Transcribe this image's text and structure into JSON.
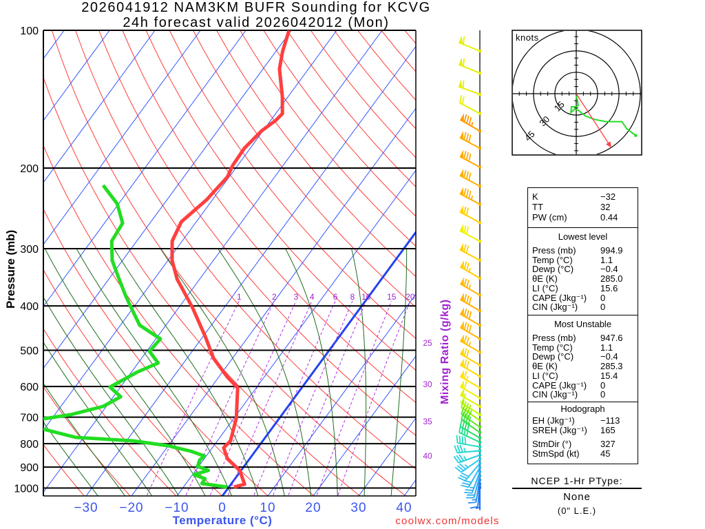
{
  "title": {
    "line1": "2026041912 NAM3KM BUFR Sounding for KCVG",
    "line2": "24h forecast valid 2026042012 (Mon)"
  },
  "credit": "coolwx.com/models",
  "chart_data": {
    "type": "skew-t",
    "xlabel": "Temperature (°C)",
    "ylabel": "Pressure (mb)",
    "ylim": [
      1041,
      100
    ],
    "xlim_at_bottom": [
      -40,
      43
    ],
    "pressure_ticks": [
      {
        "p": 100,
        "label": "100"
      },
      {
        "p": 200,
        "label": "200"
      },
      {
        "p": 300,
        "label": "300"
      },
      {
        "p": 400,
        "label": "400"
      },
      {
        "p": 500,
        "label": "500"
      },
      {
        "p": 600,
        "label": "600"
      },
      {
        "p": 700,
        "label": "700"
      },
      {
        "p": 800,
        "label": "800"
      },
      {
        "p": 900,
        "label": "900"
      },
      {
        "p": 1000,
        "label": "1000"
      }
    ],
    "temperature_ticks": [
      {
        "t": -30,
        "label": "−30"
      },
      {
        "t": -20,
        "label": "−20"
      },
      {
        "t": -10,
        "label": "−10"
      },
      {
        "t": 0,
        "label": "0"
      },
      {
        "t": 10,
        "label": "10"
      },
      {
        "t": 20,
        "label": "20"
      },
      {
        "t": 30,
        "label": "30"
      },
      {
        "t": 40,
        "label": "40"
      }
    ],
    "right_isotherm_labels": [
      "25",
      "30",
      "35",
      "40"
    ],
    "mixing_ratio_title": "Mixing Ratio (g/kg)",
    "mixing_ratio_lines": [
      {
        "w": 1,
        "label": "1"
      },
      {
        "w": 2,
        "label": "2"
      },
      {
        "w": 3,
        "label": "3"
      },
      {
        "w": 4,
        "label": "4"
      },
      {
        "w": 6,
        "label": "6"
      },
      {
        "w": 8,
        "label": "8"
      },
      {
        "w": 10,
        "label": "10"
      },
      {
        "w": 15,
        "label": "15"
      },
      {
        "w": 20,
        "label": "20"
      }
    ],
    "series": [
      {
        "name": "Temperature",
        "color": "#ff3f3f",
        "points": [
          [
            100,
            -60.5
          ],
          [
            111.3,
            -58.5
          ],
          [
            121.4,
            -56.4
          ],
          [
            139.5,
            -51.3
          ],
          [
            152.1,
            -48.5
          ],
          [
            157.4,
            -48.9
          ],
          [
            165.8,
            -50.3
          ],
          [
            180.9,
            -51.3
          ],
          [
            197.2,
            -51.1
          ],
          [
            209.2,
            -50.4
          ],
          [
            234.5,
            -51.3
          ],
          [
            262.0,
            -53.3
          ],
          [
            288.7,
            -52.2
          ],
          [
            318.1,
            -49.1
          ],
          [
            349.4,
            -45.0
          ],
          [
            404.1,
            -36.9
          ],
          [
            465.7,
            -29.6
          ],
          [
            520.4,
            -24.2
          ],
          [
            571.4,
            -18.2
          ],
          [
            604.0,
            -14.1
          ],
          [
            703.4,
            -9.5
          ],
          [
            788.7,
            -7.1
          ],
          [
            816.5,
            -7.5
          ],
          [
            863.1,
            -4.9
          ],
          [
            915.4,
            -0.3
          ],
          [
            981.0,
            3.0
          ],
          [
            994.9,
            1.1
          ]
        ]
      },
      {
        "name": "Dewpoint",
        "color": "#22dd22",
        "points": [
          [
            218.1,
            -76.4
          ],
          [
            239.4,
            -70.3
          ],
          [
            263.8,
            -66.0
          ],
          [
            288.7,
            -65.5
          ],
          [
            318.1,
            -62.3
          ],
          [
            346.9,
            -58.1
          ],
          [
            381.0,
            -53.5
          ],
          [
            402.6,
            -50.6
          ],
          [
            440.6,
            -45.8
          ],
          [
            472.3,
            -39.0
          ],
          [
            502.6,
            -39.4
          ],
          [
            533.1,
            -35.6
          ],
          [
            557.7,
            -38.7
          ],
          [
            601.9,
            -42.3
          ],
          [
            631.8,
            -38.4
          ],
          [
            663.2,
            -40.7
          ],
          [
            691.4,
            -46.5
          ],
          [
            705.9,
            -51.8
          ],
          [
            725.0,
            -70.0
          ],
          [
            743.6,
            -50.2
          ],
          [
            775.2,
            -41.7
          ],
          [
            788.7,
            -28.6
          ],
          [
            808.1,
            -20.2
          ],
          [
            830.8,
            -14.2
          ],
          [
            851.2,
            -10.4
          ],
          [
            869.1,
            -10.8
          ],
          [
            896.6,
            -10.2
          ],
          [
            915.4,
            -7.2
          ],
          [
            934.6,
            -9.7
          ],
          [
            954.2,
            -6.6
          ],
          [
            977.6,
            -6.5
          ],
          [
            994.9,
            -0.4
          ]
        ]
      }
    ],
    "wind_barbs": [
      {
        "p": 111,
        "dir": 292,
        "spd": 60,
        "color": "#e6f000"
      },
      {
        "p": 124,
        "dir": 292,
        "spd": 60,
        "color": "#e6f000"
      },
      {
        "p": 138,
        "dir": 290,
        "spd": 60,
        "color": "#e6f000"
      },
      {
        "p": 152,
        "dir": 298,
        "spd": 20,
        "color": "#e6f000"
      },
      {
        "p": 166,
        "dir": 300,
        "spd": 85,
        "color": "#ff9a00"
      },
      {
        "p": 181,
        "dir": 298,
        "spd": 80,
        "color": "#ffaa00"
      },
      {
        "p": 199,
        "dir": 298,
        "spd": 80,
        "color": "#ffaa00"
      },
      {
        "p": 219,
        "dir": 298,
        "spd": 80,
        "color": "#ffb000"
      },
      {
        "p": 240,
        "dir": 298,
        "spd": 85,
        "color": "#ffb000"
      },
      {
        "p": 263,
        "dir": 298,
        "spd": 70,
        "color": "#ffd000"
      },
      {
        "p": 289,
        "dir": 298,
        "spd": 70,
        "color": "#f0f000"
      },
      {
        "p": 318,
        "dir": 298,
        "spd": 70,
        "color": "#ffd000"
      },
      {
        "p": 348,
        "dir": 300,
        "spd": 75,
        "color": "#ffcc00"
      },
      {
        "p": 379,
        "dir": 300,
        "spd": 75,
        "color": "#ffb800"
      },
      {
        "p": 410,
        "dir": 300,
        "spd": 80,
        "color": "#ffb000"
      },
      {
        "p": 441,
        "dir": 300,
        "spd": 80,
        "color": "#ffb000"
      },
      {
        "p": 472,
        "dir": 300,
        "spd": 80,
        "color": "#ffb800"
      },
      {
        "p": 505,
        "dir": 300,
        "spd": 75,
        "color": "#ffc000"
      },
      {
        "p": 539,
        "dir": 300,
        "spd": 70,
        "color": "#ffd000"
      },
      {
        "p": 570,
        "dir": 300,
        "spd": 70,
        "color": "#ffd800"
      },
      {
        "p": 604,
        "dir": 300,
        "spd": 65,
        "color": "#ffe000"
      },
      {
        "p": 636,
        "dir": 300,
        "spd": 60,
        "color": "#f0f000"
      },
      {
        "p": 663,
        "dir": 300,
        "spd": 55,
        "color": "#e0f000"
      },
      {
        "p": 691,
        "dir": 302,
        "spd": 50,
        "color": "#c0ff00"
      },
      {
        "p": 712,
        "dir": 305,
        "spd": 45,
        "color": "#a0f000"
      },
      {
        "p": 736,
        "dir": 305,
        "spd": 40,
        "color": "#60e820"
      },
      {
        "p": 756,
        "dir": 305,
        "spd": 40,
        "color": "#40e040"
      },
      {
        "p": 777,
        "dir": 300,
        "spd": 40,
        "color": "#20e060"
      },
      {
        "p": 794,
        "dir": 295,
        "spd": 40,
        "color": "#20e090"
      },
      {
        "p": 813,
        "dir": 280,
        "spd": 40,
        "color": "#20e0c0"
      },
      {
        "p": 829,
        "dir": 265,
        "spd": 35,
        "color": "#20d8d0"
      },
      {
        "p": 847,
        "dir": 250,
        "spd": 35,
        "color": "#20d0e0"
      },
      {
        "p": 865,
        "dir": 235,
        "spd": 35,
        "color": "#30c8f0"
      },
      {
        "p": 883,
        "dir": 220,
        "spd": 30,
        "color": "#30c0f0"
      },
      {
        "p": 902,
        "dir": 210,
        "spd": 30,
        "color": "#30b8f0"
      },
      {
        "p": 921,
        "dir": 200,
        "spd": 25,
        "color": "#30b0f0"
      },
      {
        "p": 940,
        "dir": 195,
        "spd": 20,
        "color": "#30a8f0"
      },
      {
        "p": 960,
        "dir": 190,
        "spd": 15,
        "color": "#3090f0"
      },
      {
        "p": 980,
        "dir": 185,
        "spd": 10,
        "color": "#2080f0"
      },
      {
        "p": 997,
        "dir": 180,
        "spd": 5,
        "color": "#2070f0"
      }
    ],
    "hodograph": {
      "units_label": "knots",
      "ring_labels": [
        {
          "kt": 15,
          "label": "15"
        },
        {
          "kt": 30,
          "label": "30"
        },
        {
          "kt": 45,
          "label": "45"
        }
      ],
      "max_kt": 45,
      "trace_uv": [
        [
          0.1,
          -1.6
        ],
        [
          1.4,
          -8.2
        ],
        [
          -0.1,
          -9.2
        ],
        [
          -3.4,
          -9.2
        ],
        [
          -3.7,
          -13.2
        ],
        [
          -1.0,
          -10.8
        ],
        [
          1.4,
          -11.6
        ],
        [
          6.3,
          -15.6
        ],
        [
          12.7,
          -18.0
        ],
        [
          20.8,
          -19.6
        ],
        [
          32.1,
          -19.6
        ],
        [
          35.3,
          -24.5
        ],
        [
          41.7,
          -29.3
        ]
      ],
      "storm_motion": {
        "dir": 327,
        "spd": 45
      },
      "trace_color": "#22dd22",
      "storm_color": "#ff4040"
    }
  },
  "stats": {
    "indices": [
      {
        "label": "K",
        "value": "−32"
      },
      {
        "label": "TT",
        "value": "32"
      },
      {
        "label": "PW (cm)",
        "value": "0.44"
      }
    ],
    "lowest": {
      "header": "Lowest level",
      "rows": [
        {
          "label": "Press (mb)",
          "value": "994.9"
        },
        {
          "label": "Temp (°C)",
          "value": "1.1"
        },
        {
          "label": "Dewp (°C)",
          "value": "−0.4"
        },
        {
          "label": "θE (K)",
          "value": "285.0"
        },
        {
          "label": "LI (°C)",
          "value": "15.6"
        },
        {
          "label": "CAPE (Jkg⁻¹)",
          "value": "0"
        },
        {
          "label": "CIN (Jkg⁻¹)",
          "value": "0"
        }
      ]
    },
    "most_unstable": {
      "header": "Most Unstable",
      "rows": [
        {
          "label": "Press (mb)",
          "value": "947.6"
        },
        {
          "label": "Temp (°C)",
          "value": "1.1"
        },
        {
          "label": "Dewp (°C)",
          "value": "−0.4"
        },
        {
          "label": "θE (K)",
          "value": "285.3"
        },
        {
          "label": "LI (°C)",
          "value": "15.4"
        },
        {
          "label": "CAPE (Jkg⁻¹)",
          "value": "0"
        },
        {
          "label": "CIN (Jkg⁻¹)",
          "value": "0"
        }
      ]
    },
    "hodograph": {
      "header": "Hodograph",
      "rows": [
        {
          "label": "EH (Jkg⁻¹)",
          "value": "−113"
        },
        {
          "label": "SREH (Jkg⁻¹)",
          "value": "165"
        },
        {
          "label": "StmDir (°)",
          "value": "327"
        },
        {
          "label": "StmSpd (kt)",
          "value": "45"
        }
      ]
    }
  },
  "ptype": {
    "header": "NCEP 1-Hr PType:",
    "value": "None",
    "liquid_equiv": "(0\" L.E.)"
  }
}
